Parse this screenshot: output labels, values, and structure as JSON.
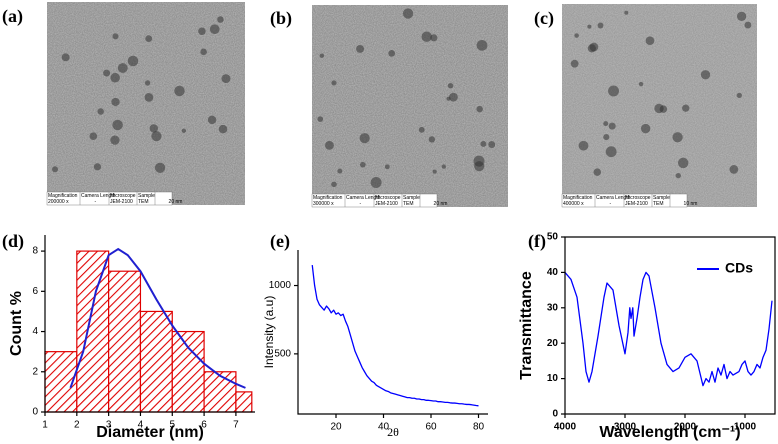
{
  "images": [
    {
      "label": "(a)",
      "headers": [
        "Magnification",
        "Camera Length",
        "Microscope",
        "Sample"
      ],
      "values": [
        "200000 x",
        "-",
        "JEM-2100",
        "TEM"
      ],
      "scale": "20 nm"
    },
    {
      "label": "(b)",
      "headers": [
        "Magnification",
        "Camera Length",
        "Microscope",
        "Sample"
      ],
      "values": [
        "300000 x",
        "-",
        "JEM-2100",
        "TEM"
      ],
      "scale": "20 nm"
    },
    {
      "label": "(c)",
      "headers": [
        "Magnification",
        "Camera Length",
        "Microscope",
        "Sample"
      ],
      "values": [
        "400000 x",
        "-",
        "JEM-2100",
        "TEM"
      ],
      "scale": "10 nm"
    }
  ],
  "chart_data": [
    {
      "type": "histogram",
      "panel_label": "(d)",
      "x_label": "Diameter (nm)",
      "y_label": "Count %",
      "bins": [
        1,
        2,
        3,
        4,
        5,
        6,
        7,
        7.5
      ],
      "values": [
        3,
        8,
        7,
        5,
        4,
        2,
        1
      ],
      "color": "#e00000",
      "fit": {
        "x": [
          1.8,
          2.2,
          2.6,
          3.0,
          3.3,
          3.6,
          4.0,
          4.5,
          5.0,
          5.5,
          6.0,
          6.5,
          7.0,
          7.3
        ],
        "values": [
          1.2,
          3,
          6,
          7.8,
          8.1,
          7.8,
          7,
          5.6,
          4.3,
          3.2,
          2.4,
          1.8,
          1.4,
          1.2
        ],
        "color": "#2020d0"
      },
      "xlim": [
        1,
        7.6
      ],
      "xticks": [
        1,
        2,
        3,
        4,
        5,
        6,
        7
      ],
      "ylim": [
        0,
        8.8
      ],
      "yticks": [
        0,
        2,
        4,
        6,
        8
      ]
    },
    {
      "type": "line",
      "panel_label": "(e)",
      "x_label": "2θ",
      "y_label": "Intensity (a.u)",
      "color": "#0000ff",
      "x": [
        10,
        11,
        12,
        13,
        14,
        15,
        16,
        17,
        18,
        19,
        20,
        21,
        22,
        23,
        24,
        25,
        26,
        27,
        28,
        29,
        30,
        31,
        32,
        33,
        34,
        35,
        36,
        37,
        38,
        39,
        40,
        41,
        42,
        43,
        44,
        45,
        46,
        47,
        48,
        49,
        50,
        51,
        52,
        53,
        54,
        55,
        56,
        57,
        58,
        59,
        60,
        61,
        62,
        63,
        64,
        65,
        66,
        67,
        68,
        69,
        70,
        71,
        72,
        73,
        74,
        75,
        76,
        77,
        78,
        79,
        80
      ],
      "values": [
        1150,
        1000,
        900,
        860,
        840,
        820,
        850,
        830,
        800,
        820,
        790,
        800,
        780,
        790,
        740,
        700,
        640,
        580,
        520,
        480,
        440,
        400,
        370,
        340,
        320,
        300,
        290,
        270,
        260,
        250,
        240,
        230,
        225,
        215,
        210,
        205,
        200,
        195,
        190,
        185,
        180,
        180,
        175,
        175,
        170,
        170,
        165,
        165,
        160,
        160,
        158,
        155,
        155,
        150,
        150,
        148,
        145,
        145,
        142,
        140,
        140,
        138,
        135,
        135,
        132,
        130,
        130,
        128,
        125,
        122,
        120
      ],
      "xlim": [
        4,
        84
      ],
      "xticks": [
        20,
        40,
        60,
        80
      ],
      "ylim": [
        60,
        1260
      ],
      "yticks": [
        500,
        1000
      ]
    },
    {
      "type": "line",
      "panel_label": "(f)",
      "x_label": "Wavelength (cm⁻¹)",
      "y_label": "Transmittance",
      "legend": "upper right",
      "x": [
        4000,
        3900,
        3800,
        3700,
        3650,
        3600,
        3550,
        3450,
        3350,
        3300,
        3250,
        3200,
        3100,
        3000,
        2950,
        2920,
        2900,
        2870,
        2850,
        2800,
        2750,
        2700,
        2650,
        2600,
        2500,
        2400,
        2300,
        2200,
        2100,
        2000,
        1900,
        1800,
        1700,
        1650,
        1600,
        1550,
        1500,
        1450,
        1400,
        1350,
        1300,
        1250,
        1200,
        1100,
        1050,
        1000,
        950,
        900,
        850,
        800,
        750,
        700,
        650,
        600,
        550
      ],
      "series": [
        {
          "name": "CDs",
          "color": "#0000ff",
          "values": [
            40,
            38,
            33,
            20,
            12,
            9,
            12,
            22,
            33,
            37,
            36,
            35,
            25,
            17,
            23,
            30,
            27,
            30,
            22,
            27,
            33,
            38,
            40,
            39,
            30,
            20,
            14,
            12,
            13,
            16,
            17,
            15,
            8,
            10,
            9,
            12,
            9,
            13,
            11,
            14,
            10,
            12,
            11,
            12,
            14,
            15,
            12,
            11,
            12,
            14,
            13,
            16,
            18,
            24,
            32
          ]
        }
      ],
      "xlim": [
        4000,
        500
      ],
      "xticks": [
        4000,
        3000,
        2000,
        1000
      ],
      "ylim": [
        0,
        50
      ],
      "yticks": [
        0,
        10,
        20,
        30,
        40,
        50
      ]
    }
  ]
}
